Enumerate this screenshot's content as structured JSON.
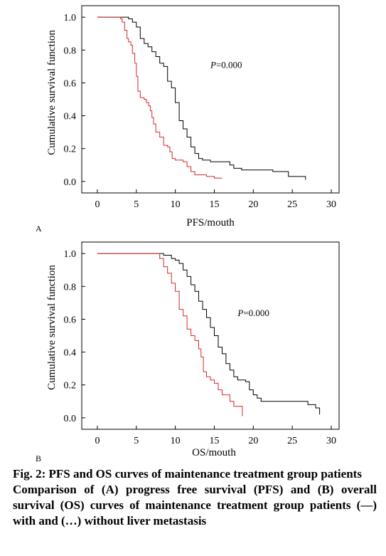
{
  "figure": {
    "caption_title": "Fig. 2: PFS and OS curves of maintenance treatment group patients",
    "caption_body": "Comparison of (A) progress free survival (PFS) and (B) overall survival (OS) curves of maintenance treatment group patients (—) with and (…) without liver metastasis"
  },
  "chart_data": [
    {
      "type": "line",
      "panel_label": "A",
      "xlabel": "PFS/mouth",
      "ylabel": "Cumulative survival function",
      "xlim": [
        -2,
        31
      ],
      "ylim": [
        -0.07,
        1.07
      ],
      "xticks": [
        0,
        5,
        10,
        15,
        20,
        25,
        30
      ],
      "yticks": [
        "0.0",
        "0.2",
        "0.4",
        "0.6",
        "0.8",
        "1.0"
      ],
      "grid": false,
      "annotation": {
        "italic": "P",
        "rest": "=0.000",
        "x": 14.5,
        "y": 0.69
      },
      "series": [
        {
          "color": "#000000",
          "points": [
            [
              0,
              1.0
            ],
            [
              3.5,
              1.0
            ],
            [
              4.0,
              0.99
            ],
            [
              4.5,
              0.97
            ],
            [
              5.0,
              0.94
            ],
            [
              5.5,
              0.87
            ],
            [
              6.0,
              0.84
            ],
            [
              6.5,
              0.82
            ],
            [
              7.0,
              0.79
            ],
            [
              7.5,
              0.76
            ],
            [
              8.0,
              0.72
            ],
            [
              8.5,
              0.7
            ],
            [
              9.0,
              0.61
            ],
            [
              9.5,
              0.57
            ],
            [
              10.0,
              0.48
            ],
            [
              10.5,
              0.37
            ],
            [
              11.0,
              0.32
            ],
            [
              11.5,
              0.27
            ],
            [
              12.0,
              0.21
            ],
            [
              12.5,
              0.17
            ],
            [
              13.0,
              0.14
            ],
            [
              13.5,
              0.13
            ],
            [
              14.5,
              0.12
            ],
            [
              16.0,
              0.12
            ],
            [
              17.0,
              0.1
            ],
            [
              17.5,
              0.08
            ],
            [
              18.5,
              0.07
            ],
            [
              21.0,
              0.07
            ],
            [
              22.0,
              0.07
            ],
            [
              22.5,
              0.06
            ],
            [
              24.0,
              0.06
            ],
            [
              24.5,
              0.03
            ],
            [
              26.5,
              0.03
            ],
            [
              26.7,
              0.01
            ]
          ]
        },
        {
          "color": "#d62728",
          "points": [
            [
              0,
              1.0
            ],
            [
              2.5,
              1.0
            ],
            [
              3.0,
              0.99
            ],
            [
              3.2,
              0.97
            ],
            [
              3.5,
              0.92
            ],
            [
              3.8,
              0.87
            ],
            [
              4.0,
              0.85
            ],
            [
              4.3,
              0.83
            ],
            [
              4.5,
              0.78
            ],
            [
              4.8,
              0.72
            ],
            [
              5.0,
              0.64
            ],
            [
              5.2,
              0.55
            ],
            [
              5.5,
              0.51
            ],
            [
              6.0,
              0.5
            ],
            [
              6.3,
              0.48
            ],
            [
              6.6,
              0.46
            ],
            [
              6.8,
              0.43
            ],
            [
              7.0,
              0.39
            ],
            [
              7.2,
              0.35
            ],
            [
              7.5,
              0.3
            ],
            [
              8.0,
              0.27
            ],
            [
              8.5,
              0.22
            ],
            [
              9.0,
              0.21
            ],
            [
              9.3,
              0.18
            ],
            [
              9.6,
              0.14
            ],
            [
              10.0,
              0.13
            ],
            [
              11.0,
              0.12
            ],
            [
              11.5,
              0.09
            ],
            [
              12.0,
              0.06
            ],
            [
              12.5,
              0.04
            ],
            [
              14.0,
              0.03
            ],
            [
              15.0,
              0.02
            ],
            [
              16.0,
              0.02
            ]
          ]
        }
      ]
    },
    {
      "type": "line",
      "panel_label": "B",
      "xlabel": "OS/mouth",
      "ylabel": "Cumulative survival function",
      "xlim": [
        -2,
        31
      ],
      "ylim": [
        -0.07,
        1.07
      ],
      "xticks": [
        0,
        5,
        10,
        15,
        20,
        25,
        30
      ],
      "yticks": [
        "0.0",
        "0.2",
        "0.4",
        "0.6",
        "0.8",
        "1.0"
      ],
      "grid": false,
      "annotation": {
        "italic": "P",
        "rest": "=0.000",
        "x": 18,
        "y": 0.62
      },
      "series": [
        {
          "color": "#000000",
          "points": [
            [
              0,
              1.0
            ],
            [
              8.0,
              1.0
            ],
            [
              8.5,
              0.99
            ],
            [
              9.0,
              0.99
            ],
            [
              9.5,
              0.97
            ],
            [
              10.0,
              0.96
            ],
            [
              10.5,
              0.94
            ],
            [
              11.0,
              0.9
            ],
            [
              11.5,
              0.86
            ],
            [
              12.0,
              0.81
            ],
            [
              12.5,
              0.77
            ],
            [
              13.0,
              0.71
            ],
            [
              13.5,
              0.66
            ],
            [
              14.0,
              0.61
            ],
            [
              14.5,
              0.55
            ],
            [
              15.0,
              0.5
            ],
            [
              15.5,
              0.43
            ],
            [
              16.0,
              0.39
            ],
            [
              16.5,
              0.33
            ],
            [
              17.0,
              0.29
            ],
            [
              17.5,
              0.25
            ],
            [
              18.0,
              0.23
            ],
            [
              19.0,
              0.22
            ],
            [
              19.5,
              0.17
            ],
            [
              20.0,
              0.14
            ],
            [
              20.5,
              0.12
            ],
            [
              21.0,
              0.1
            ],
            [
              23.0,
              0.1
            ],
            [
              26.0,
              0.1
            ],
            [
              27.0,
              0.08
            ],
            [
              28.0,
              0.06
            ],
            [
              28.5,
              0.02
            ]
          ]
        },
        {
          "color": "#d62728",
          "points": [
            [
              0,
              1.0
            ],
            [
              7.5,
              1.0
            ],
            [
              8.0,
              0.97
            ],
            [
              8.5,
              0.92
            ],
            [
              9.0,
              0.88
            ],
            [
              9.5,
              0.82
            ],
            [
              10.0,
              0.77
            ],
            [
              10.5,
              0.66
            ],
            [
              11.0,
              0.62
            ],
            [
              11.5,
              0.54
            ],
            [
              12.0,
              0.5
            ],
            [
              12.5,
              0.47
            ],
            [
              13.0,
              0.42
            ],
            [
              13.3,
              0.37
            ],
            [
              13.6,
              0.28
            ],
            [
              14.0,
              0.25
            ],
            [
              14.5,
              0.23
            ],
            [
              15.0,
              0.21
            ],
            [
              15.5,
              0.17
            ],
            [
              16.0,
              0.14
            ],
            [
              17.0,
              0.1
            ],
            [
              17.5,
              0.07
            ],
            [
              18.0,
              0.07
            ],
            [
              18.5,
              0.07
            ],
            [
              18.6,
              0.01
            ]
          ]
        }
      ]
    }
  ]
}
